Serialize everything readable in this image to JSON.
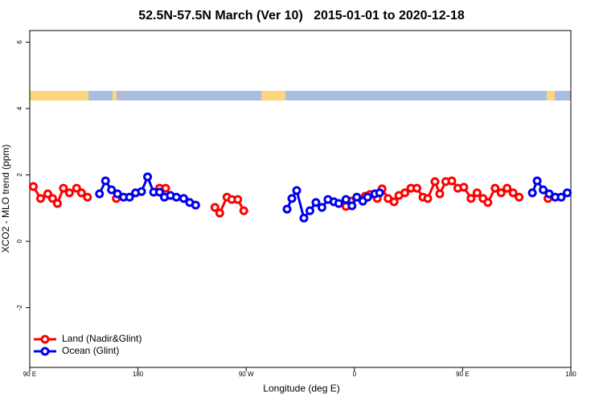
{
  "chart_data": {
    "type": "line",
    "title": "52.5N-57.5N March (Ver 10)   2015-01-01 to 2020-12-18",
    "x_label": "Longitude (deg E)",
    "y_label": "XCO2 - MLO trend (ppm)",
    "xlim": [
      90,
      540
    ],
    "ylim": [
      -3.8,
      6.35
    ],
    "xticks": [
      {
        "value": 90,
        "label": "90 E"
      },
      180,
      {
        "value": 270,
        "label": "90 W"
      },
      {
        "value": 360,
        "label": "0"
      },
      {
        "value": 450,
        "label": "90 E"
      },
      {
        "value": 540,
        "label": "180"
      }
    ],
    "yticks": [
      -2,
      0,
      2,
      4,
      6
    ],
    "legend": "bottom-left",
    "series": [
      {
        "name": "Land (Nadir&Glint)",
        "color": "#ff0000",
        "x": [
          93,
          99,
          105,
          109,
          113,
          118,
          123,
          129,
          133,
          138,
          null,
          162,
          null,
          198,
          203,
          null,
          244,
          248,
          254,
          258,
          263,
          268,
          null,
          353,
          357,
          369,
          373,
          379,
          383,
          388,
          393,
          397,
          402,
          407,
          412,
          417,
          421,
          427,
          431,
          436,
          441,
          446,
          451,
          457,
          462,
          467,
          471,
          477,
          482,
          487,
          492,
          497,
          null,
          521
        ],
        "values": [
          1.65,
          1.29,
          1.43,
          1.29,
          1.14,
          1.6,
          1.46,
          1.6,
          1.46,
          1.33,
          null,
          1.29,
          null,
          1.6,
          1.6,
          null,
          1.02,
          0.85,
          1.33,
          1.26,
          1.26,
          0.92,
          null,
          1.05,
          1.21,
          1.36,
          1.41,
          1.29,
          1.58,
          1.29,
          1.19,
          1.38,
          1.46,
          1.6,
          1.6,
          1.33,
          1.29,
          1.8,
          1.43,
          1.8,
          1.82,
          1.6,
          1.63,
          1.29,
          1.46,
          1.29,
          1.17,
          1.6,
          1.46,
          1.6,
          1.46,
          1.33,
          null,
          1.29
        ]
      },
      {
        "name": "Ocean (Glint)",
        "color": "#0000ee",
        "x": [
          148,
          153,
          158,
          163,
          168,
          173,
          178,
          183,
          188,
          193,
          198,
          202,
          207,
          212,
          218,
          223,
          228,
          null,
          304,
          308,
          312,
          318,
          323,
          328,
          333,
          338,
          343,
          347,
          353,
          358,
          362,
          367,
          371,
          377,
          381,
          null,
          508,
          512,
          517,
          522,
          527,
          532,
          537
        ],
        "values": [
          1.43,
          1.82,
          1.55,
          1.43,
          1.33,
          1.33,
          1.46,
          1.5,
          1.94,
          1.48,
          1.48,
          1.33,
          1.38,
          1.33,
          1.29,
          1.17,
          1.09,
          null,
          0.97,
          1.29,
          1.53,
          0.7,
          0.92,
          1.17,
          1.02,
          1.26,
          1.19,
          1.14,
          1.26,
          1.07,
          1.33,
          1.21,
          1.33,
          1.43,
          1.46,
          null,
          1.46,
          1.82,
          1.55,
          1.43,
          1.33,
          1.33,
          1.46
        ]
      }
    ]
  }
}
